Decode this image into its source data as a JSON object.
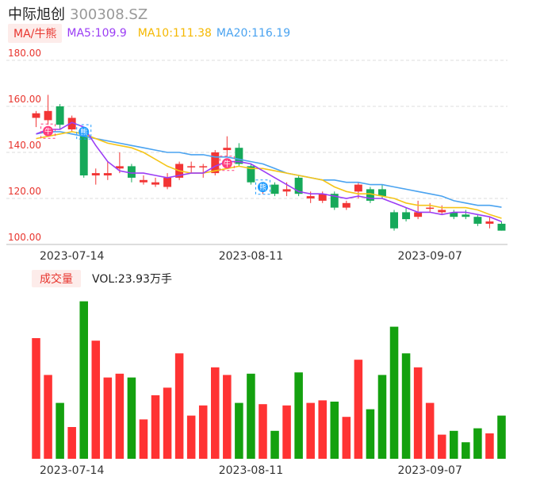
{
  "header": {
    "name": "中际旭创",
    "code": "300308.SZ"
  },
  "legend": {
    "indicator": "MA/牛熊",
    "ma5": "MA5:109.9",
    "ma10": "MA10:111.38",
    "ma20": "MA20:116.19"
  },
  "volume_legend": {
    "label": "成交量",
    "value": "VOL:23.93万手"
  },
  "colors": {
    "up": "#f23535",
    "down": "#16a95a",
    "vol_up": "#ff3333",
    "vol_down": "#14a10f",
    "ma5": "#9b3df5",
    "ma10": "#f5c518",
    "ma20": "#4aa3f0"
  },
  "chart_data": {
    "type": "candlestick",
    "ylim": [
      100,
      180
    ],
    "yticks": [
      "180.00",
      "160.00",
      "140.00",
      "120.00",
      "100.00"
    ],
    "xtick_labels": [
      "2023-07-14",
      "2023-08-11",
      "2023-09-07"
    ],
    "xtick_index": [
      3,
      18,
      33
    ],
    "candles": [
      {
        "o": 155,
        "c": 157,
        "h": 158,
        "l": 151
      },
      {
        "o": 154,
        "c": 158,
        "h": 165,
        "l": 152
      },
      {
        "o": 160,
        "c": 152,
        "h": 161,
        "l": 150
      },
      {
        "o": 150,
        "c": 155,
        "h": 156,
        "l": 149
      },
      {
        "o": 150,
        "c": 130,
        "h": 151,
        "l": 129
      },
      {
        "o": 130,
        "c": 131,
        "h": 133,
        "l": 126
      },
      {
        "o": 130,
        "c": 131,
        "h": 136,
        "l": 128
      },
      {
        "o": 133,
        "c": 134,
        "h": 140,
        "l": 131
      },
      {
        "o": 134,
        "c": 129,
        "h": 135,
        "l": 127
      },
      {
        "o": 127,
        "c": 128,
        "h": 130,
        "l": 126
      },
      {
        "o": 126,
        "c": 127,
        "h": 129,
        "l": 125
      },
      {
        "o": 125,
        "c": 129,
        "h": 131,
        "l": 124
      },
      {
        "o": 129,
        "c": 135,
        "h": 136,
        "l": 128
      },
      {
        "o": 134,
        "c": 134,
        "h": 136,
        "l": 131
      },
      {
        "o": 134,
        "c": 134,
        "h": 135,
        "l": 129
      },
      {
        "o": 131,
        "c": 140,
        "h": 141,
        "l": 130
      },
      {
        "o": 141,
        "c": 142,
        "h": 147,
        "l": 138
      },
      {
        "o": 142,
        "c": 135,
        "h": 144,
        "l": 134
      },
      {
        "o": 134,
        "c": 127,
        "h": 135,
        "l": 126
      },
      {
        "o": 124,
        "c": 124,
        "h": 127,
        "l": 122
      },
      {
        "o": 126,
        "c": 122,
        "h": 127,
        "l": 121
      },
      {
        "o": 123,
        "c": 124,
        "h": 127,
        "l": 121
      },
      {
        "o": 129,
        "c": 122,
        "h": 130,
        "l": 121
      },
      {
        "o": 120,
        "c": 121,
        "h": 123,
        "l": 118
      },
      {
        "o": 119,
        "c": 122,
        "h": 123,
        "l": 118
      },
      {
        "o": 122,
        "c": 116,
        "h": 123,
        "l": 115
      },
      {
        "o": 116,
        "c": 118,
        "h": 119,
        "l": 115
      },
      {
        "o": 123,
        "c": 126,
        "h": 127,
        "l": 120
      },
      {
        "o": 124,
        "c": 119,
        "h": 125,
        "l": 118
      },
      {
        "o": 124,
        "c": 121,
        "h": 126,
        "l": 120
      },
      {
        "o": 114,
        "c": 107,
        "h": 115,
        "l": 106
      },
      {
        "o": 114,
        "c": 111,
        "h": 116,
        "l": 110
      },
      {
        "o": 112,
        "c": 114,
        "h": 119,
        "l": 111
      },
      {
        "o": 116,
        "c": 116,
        "h": 118,
        "l": 114
      },
      {
        "o": 114,
        "c": 115,
        "h": 117,
        "l": 113
      },
      {
        "o": 114,
        "c": 112,
        "h": 115,
        "l": 111
      },
      {
        "o": 113,
        "c": 112,
        "h": 115,
        "l": 111
      },
      {
        "o": 112,
        "c": 109,
        "h": 113,
        "l": 108
      },
      {
        "o": 109,
        "c": 110,
        "h": 112,
        "l": 107
      },
      {
        "o": 109,
        "c": 106,
        "h": 110,
        "l": 106
      }
    ],
    "ma5": [
      148,
      150,
      150,
      153,
      151,
      143,
      136,
      132,
      131,
      131,
      130,
      129,
      130,
      131,
      131,
      134,
      136,
      136,
      135,
      132,
      129,
      126,
      123,
      122,
      122,
      121,
      120,
      121,
      120,
      120,
      118,
      116,
      114,
      114,
      113,
      114,
      114,
      113,
      112,
      109.9
    ],
    "ma10": [
      146,
      147,
      148,
      149,
      148,
      146,
      144,
      143,
      142,
      140,
      137,
      134,
      132,
      131,
      131,
      132,
      133,
      134,
      133,
      133,
      132,
      131,
      130,
      129,
      128,
      125,
      123,
      122,
      122,
      121,
      120,
      118,
      117,
      117,
      116,
      116,
      116,
      115,
      113,
      111.38
    ],
    "ma20": [
      148,
      149,
      149,
      148,
      147,
      146,
      145,
      144,
      143,
      142,
      141,
      140,
      140,
      139,
      139,
      138,
      138,
      137,
      136,
      135,
      133,
      131,
      130,
      129,
      128,
      128,
      127,
      127,
      126,
      126,
      125,
      124,
      123,
      122,
      121,
      119,
      118,
      117,
      117,
      116.19
    ],
    "volume": [
      95,
      66,
      44,
      25,
      124,
      93,
      64,
      67,
      64,
      31,
      50,
      56,
      83,
      34,
      42,
      72,
      66,
      44,
      67,
      43,
      22,
      42,
      68,
      44,
      46,
      45,
      33,
      78,
      39,
      66,
      104,
      83,
      72,
      44,
      19,
      22,
      13,
      24,
      20,
      34
    ],
    "markers": [
      {
        "index": 1,
        "type": "bull",
        "label": "牛"
      },
      {
        "index": 4,
        "type": "bear",
        "label": "熊"
      },
      {
        "index": 16,
        "type": "bull",
        "label": "牛"
      },
      {
        "index": 19,
        "type": "bear",
        "label": "熊"
      }
    ]
  }
}
